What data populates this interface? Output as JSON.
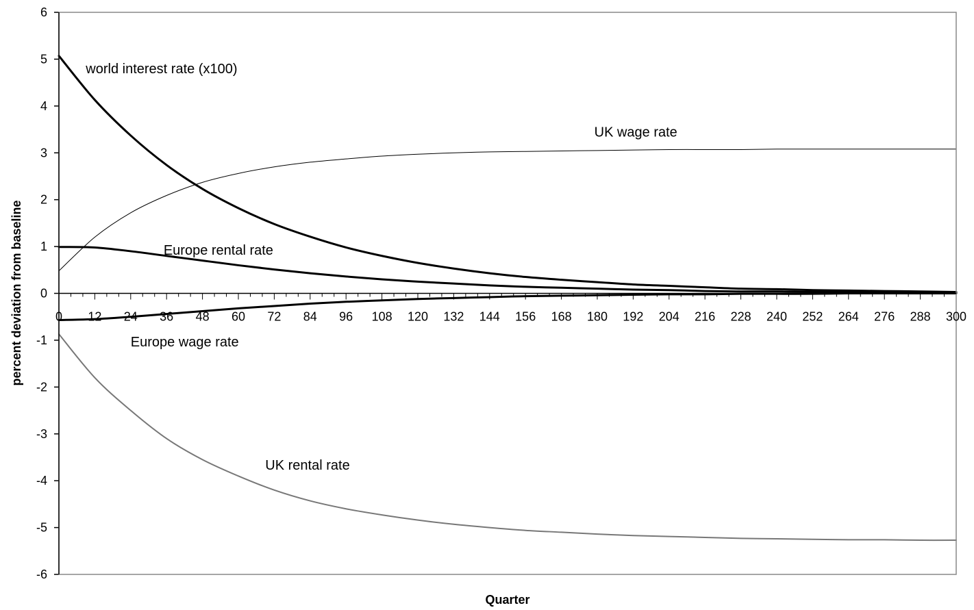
{
  "chart_data": {
    "type": "line",
    "title": "",
    "xlabel": "Quarter",
    "ylabel": "percent deviation from baseline",
    "xlim": [
      0,
      300
    ],
    "ylim": [
      -6,
      6
    ],
    "x_ticks": [
      0,
      12,
      24,
      36,
      48,
      60,
      72,
      84,
      96,
      108,
      120,
      132,
      144,
      156,
      168,
      180,
      192,
      204,
      216,
      228,
      240,
      252,
      264,
      276,
      288,
      300
    ],
    "y_ticks": [
      6,
      5,
      4,
      3,
      2,
      1,
      0,
      -1,
      -2,
      -3,
      -4,
      -5,
      -6
    ],
    "grid": false,
    "legend": "none (series labelled inline)",
    "x": [
      0,
      12,
      24,
      36,
      48,
      60,
      72,
      84,
      96,
      108,
      120,
      132,
      144,
      156,
      168,
      180,
      192,
      204,
      216,
      228,
      240,
      252,
      264,
      276,
      288,
      300
    ],
    "series": [
      {
        "name": "world interest rate (x100)",
        "color": "#000000",
        "width": 3,
        "values": [
          5.07,
          4.13,
          3.37,
          2.74,
          2.23,
          1.82,
          1.48,
          1.21,
          0.98,
          0.8,
          0.65,
          0.53,
          0.43,
          0.35,
          0.29,
          0.24,
          0.19,
          0.16,
          0.13,
          0.1,
          0.09,
          0.07,
          0.06,
          0.05,
          0.04,
          0.03
        ]
      },
      {
        "name": "UK wage rate",
        "color": "#000000",
        "width": 1,
        "values": [
          0.48,
          1.2,
          1.72,
          2.09,
          2.37,
          2.56,
          2.7,
          2.8,
          2.87,
          2.93,
          2.97,
          3.0,
          3.02,
          3.03,
          3.04,
          3.05,
          3.06,
          3.07,
          3.07,
          3.07,
          3.08,
          3.08,
          3.08,
          3.08,
          3.08,
          3.08
        ]
      },
      {
        "name": "Europe rental rate",
        "color": "#000000",
        "width": 3,
        "values": [
          0.99,
          0.98,
          0.9,
          0.8,
          0.7,
          0.6,
          0.51,
          0.43,
          0.36,
          0.3,
          0.25,
          0.21,
          0.17,
          0.14,
          0.12,
          0.1,
          0.08,
          0.07,
          0.05,
          0.04,
          0.04,
          0.03,
          0.03,
          0.02,
          0.02,
          0.01
        ]
      },
      {
        "name": "Europe wage rate",
        "color": "#000000",
        "width": 3,
        "values": [
          -0.57,
          -0.55,
          -0.5,
          -0.44,
          -0.38,
          -0.32,
          -0.27,
          -0.22,
          -0.18,
          -0.15,
          -0.12,
          -0.1,
          -0.08,
          -0.06,
          -0.05,
          -0.04,
          -0.03,
          -0.02,
          -0.02,
          -0.01,
          -0.01,
          -0.01,
          0.0,
          0.0,
          0.0,
          0.0
        ]
      },
      {
        "name": "UK rental rate",
        "color": "#777777",
        "width": 2,
        "values": [
          -0.87,
          -1.8,
          -2.5,
          -3.1,
          -3.55,
          -3.9,
          -4.2,
          -4.43,
          -4.6,
          -4.73,
          -4.84,
          -4.93,
          -5.0,
          -5.06,
          -5.1,
          -5.14,
          -5.17,
          -5.19,
          -5.21,
          -5.23,
          -5.24,
          -5.25,
          -5.26,
          -5.26,
          -5.27,
          -5.27
        ]
      }
    ],
    "annotations": [
      {
        "text": "world interest rate (x100)",
        "x": 9,
        "y": 4.8
      },
      {
        "text": "UK wage rate",
        "x": 179,
        "y": 3.45
      },
      {
        "text": "Europe rental rate",
        "x": 35,
        "y": 0.93
      },
      {
        "text": "Europe wage rate",
        "x": 24,
        "y": -1.03
      },
      {
        "text": "UK rental rate",
        "x": 69,
        "y": -3.66
      }
    ]
  }
}
